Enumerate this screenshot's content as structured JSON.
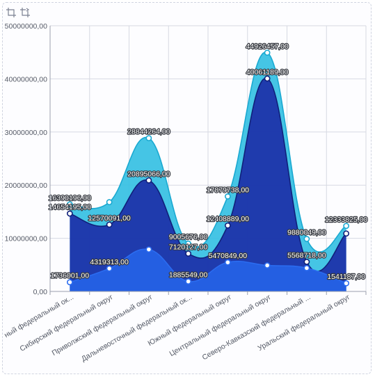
{
  "toolbar": {
    "buttons": [
      {
        "icon": "zoom-area-icon"
      },
      {
        "icon": "zoom-reset-icon"
      }
    ]
  },
  "chart_data": {
    "type": "area",
    "categories": [
      "ный федеральный ок...",
      "Сибирский федеральный округ",
      "Приволжский федеральный округ",
      "Дальневосточный федеральный ок...",
      "Южный федеральный округ",
      "Центральный федеральный округ",
      "Северо-Кавказский федеральный ...",
      "Уральский федеральный округ"
    ],
    "ylim": [
      0,
      50000000
    ],
    "yticks": [
      0,
      10000000,
      20000000,
      30000000,
      40000000,
      50000000
    ],
    "ytick_labels": [
      "0,00",
      "10000000,00",
      "20000000,00",
      "30000000,00",
      "40000000,00",
      "50000000,00"
    ],
    "grid": true,
    "series": [
      {
        "values": [
          16390196,
          16800000,
          28844264,
          9005676,
          17879738,
          44926457,
          9880049,
          12333825
        ],
        "labels": [
          "16390196,00",
          "",
          "28844264,00",
          "9005676,00",
          "17879738,00",
          "44926457,00",
          "9880049,00",
          "12333825,00"
        ],
        "color": "#35c0e3"
      },
      {
        "values": [
          14654195,
          12570091,
          20895066,
          7120127,
          12408889,
          40061189,
          5568718,
          10900000
        ],
        "labels": [
          "14654195,00",
          "12570091,00",
          "20895066,00",
          "7120127,00",
          "12408889,00",
          "40061189,00",
          "5568718,00",
          ""
        ],
        "color": "#1c2fa8"
      },
      {
        "values": [
          1736001,
          4319313,
          7900000,
          1885549,
          5470849,
          4900000,
          4400000,
          1541187
        ],
        "labels": [
          "1736001,00",
          "4319313,00",
          "",
          "1885549,00",
          "5470849,00",
          "",
          "",
          "1541187,00"
        ],
        "color": "#2563e6"
      }
    ]
  }
}
